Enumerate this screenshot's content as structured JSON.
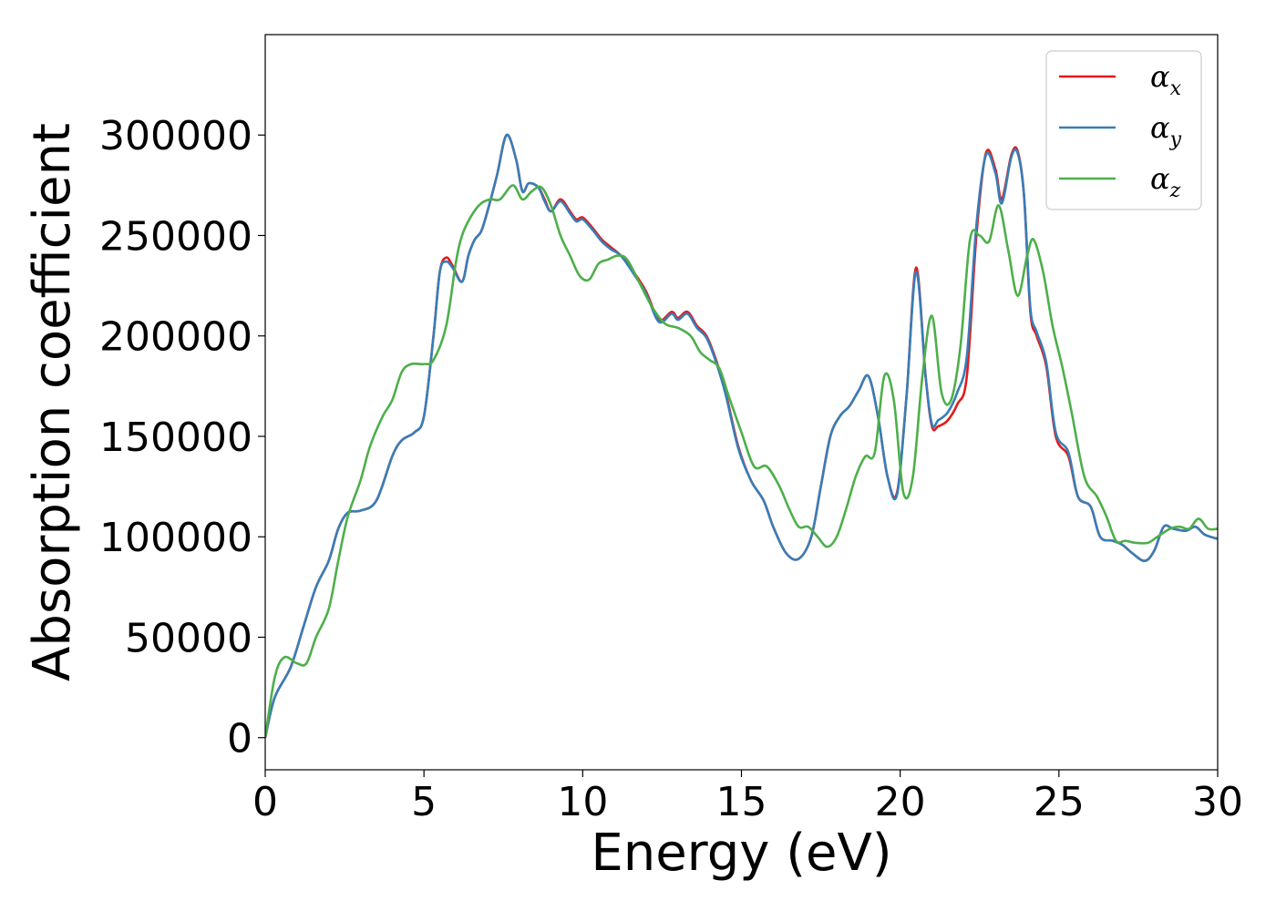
{
  "chart_data": {
    "type": "line",
    "xlabel": "Energy (eV)",
    "ylabel": "Absorption coefficient",
    "xlim": [
      0,
      30
    ],
    "ylim": [
      -16000,
      350000
    ],
    "xticks": [
      0,
      5,
      10,
      15,
      20,
      25,
      30
    ],
    "xtick_labels": [
      "0",
      "5",
      "10",
      "15",
      "20",
      "25",
      "30"
    ],
    "yticks": [
      0,
      50000,
      100000,
      150000,
      200000,
      250000,
      300000
    ],
    "ytick_labels": [
      "0",
      "50000",
      "100000",
      "150000",
      "200000",
      "250000",
      "300000"
    ],
    "grid": false,
    "legend_position": "top-right",
    "series": [
      {
        "name": "α",
        "subscript": "x",
        "color": "#e41a1c",
        "x": [
          0,
          0.3,
          0.8,
          1.2,
          1.6,
          2.0,
          2.3,
          2.6,
          3.0,
          3.5,
          4.0,
          4.3,
          4.7,
          5.0,
          5.3,
          5.5,
          5.7,
          5.9,
          6.2,
          6.4,
          6.6,
          6.8,
          7.0,
          7.3,
          7.6,
          7.9,
          8.1,
          8.3,
          8.6,
          8.8,
          9.0,
          9.3,
          9.6,
          9.8,
          10.0,
          10.3,
          10.6,
          10.9,
          11.2,
          11.6,
          12.0,
          12.4,
          12.8,
          13.0,
          13.3,
          13.6,
          13.9,
          14.2,
          14.5,
          14.9,
          15.3,
          15.7,
          16.0,
          16.4,
          16.8,
          17.2,
          17.5,
          17.8,
          18.1,
          18.4,
          18.7,
          19.0,
          19.3,
          19.6,
          19.9,
          20.2,
          20.5,
          20.8,
          21.0,
          21.2,
          21.5,
          21.8,
          22.1,
          22.4,
          22.7,
          23.0,
          23.2,
          23.5,
          23.7,
          23.9,
          24.1,
          24.3,
          24.6,
          24.9,
          25.3,
          25.6,
          26.0,
          26.3,
          26.7,
          27.0,
          27.3,
          27.7,
          28.0,
          28.3,
          28.6,
          29.0,
          29.3,
          29.6,
          30.0
        ],
        "y": [
          0,
          20000,
          35000,
          55000,
          75000,
          88000,
          104000,
          112000,
          113000,
          118000,
          140000,
          148000,
          152000,
          160000,
          200000,
          232000,
          239000,
          235000,
          227000,
          240000,
          248000,
          252000,
          262000,
          280000,
          300000,
          288000,
          272000,
          276000,
          274000,
          268000,
          262000,
          268000,
          262000,
          258000,
          259000,
          254000,
          248000,
          244000,
          240000,
          232000,
          222000,
          208000,
          212000,
          209000,
          212000,
          205000,
          200000,
          188000,
          172000,
          145000,
          128000,
          118000,
          105000,
          92000,
          89000,
          100000,
          125000,
          150000,
          160000,
          165000,
          173000,
          180000,
          160000,
          130000,
          122000,
          170000,
          234000,
          180000,
          155000,
          155000,
          158000,
          166000,
          180000,
          250000,
          291000,
          283000,
          268000,
          290000,
          292000,
          270000,
          212000,
          200000,
          185000,
          150000,
          140000,
          120000,
          115000,
          100000,
          98000,
          96000,
          92000,
          88000,
          93000,
          105000,
          104000,
          103000,
          105000,
          101000,
          99000
        ]
      },
      {
        "name": "α",
        "subscript": "y",
        "color": "#377eb8",
        "x": [
          0,
          0.3,
          0.8,
          1.2,
          1.6,
          2.0,
          2.3,
          2.6,
          3.0,
          3.5,
          4.0,
          4.3,
          4.7,
          5.0,
          5.3,
          5.5,
          5.7,
          5.9,
          6.2,
          6.4,
          6.6,
          6.8,
          7.0,
          7.3,
          7.6,
          7.9,
          8.1,
          8.3,
          8.6,
          8.8,
          9.0,
          9.3,
          9.6,
          9.8,
          10.0,
          10.3,
          10.6,
          10.9,
          11.2,
          11.6,
          12.0,
          12.4,
          12.8,
          13.0,
          13.3,
          13.6,
          13.9,
          14.2,
          14.5,
          14.9,
          15.3,
          15.7,
          16.0,
          16.4,
          16.8,
          17.2,
          17.5,
          17.8,
          18.1,
          18.4,
          18.7,
          19.0,
          19.3,
          19.6,
          19.9,
          20.2,
          20.5,
          20.8,
          21.0,
          21.2,
          21.5,
          21.8,
          22.1,
          22.4,
          22.7,
          23.0,
          23.2,
          23.5,
          23.7,
          23.9,
          24.1,
          24.3,
          24.6,
          24.9,
          25.3,
          25.6,
          26.0,
          26.3,
          26.7,
          27.0,
          27.3,
          27.7,
          28.0,
          28.3,
          28.6,
          29.0,
          29.3,
          29.6,
          30.0
        ],
        "y": [
          0,
          20000,
          35000,
          55000,
          75000,
          88000,
          104000,
          112000,
          113000,
          118000,
          140000,
          148000,
          152000,
          160000,
          200000,
          232000,
          237000,
          234000,
          227000,
          240000,
          248000,
          252000,
          262000,
          280000,
          300000,
          288000,
          272000,
          276000,
          274000,
          267000,
          262000,
          267000,
          261000,
          257000,
          258000,
          253000,
          247000,
          243000,
          240000,
          231000,
          221000,
          207000,
          211000,
          208000,
          211000,
          204000,
          199000,
          187000,
          171000,
          144000,
          128000,
          118000,
          105000,
          92000,
          89000,
          100000,
          125000,
          150000,
          160000,
          165000,
          173000,
          180000,
          160000,
          130000,
          121000,
          170000,
          232000,
          180000,
          156000,
          158000,
          162000,
          172000,
          190000,
          255000,
          290000,
          281000,
          266000,
          289000,
          291000,
          270000,
          214000,
          202000,
          187000,
          152000,
          142000,
          120000,
          115000,
          100000,
          98000,
          96000,
          92000,
          88000,
          93000,
          105000,
          104000,
          103000,
          105000,
          101000,
          99000
        ]
      },
      {
        "name": "α",
        "subscript": "z",
        "color": "#4daf4a",
        "x": [
          0,
          0.3,
          0.6,
          1.0,
          1.3,
          1.6,
          2.0,
          2.3,
          2.6,
          3.0,
          3.3,
          3.7,
          4.0,
          4.3,
          4.6,
          5.0,
          5.3,
          5.7,
          6.0,
          6.2,
          6.5,
          6.8,
          7.1,
          7.4,
          7.8,
          8.1,
          8.4,
          8.7,
          9.0,
          9.3,
          9.6,
          9.9,
          10.2,
          10.5,
          10.8,
          11.1,
          11.4,
          11.8,
          12.2,
          12.6,
          13.0,
          13.4,
          13.7,
          14.0,
          14.3,
          14.6,
          15.0,
          15.4,
          15.8,
          16.2,
          16.5,
          16.8,
          17.1,
          17.4,
          17.7,
          18.0,
          18.3,
          18.6,
          18.9,
          19.2,
          19.5,
          19.8,
          20.1,
          20.4,
          20.7,
          21.0,
          21.3,
          21.6,
          21.9,
          22.2,
          22.5,
          22.8,
          23.1,
          23.4,
          23.7,
          24.0,
          24.2,
          24.5,
          24.8,
          25.1,
          25.4,
          25.8,
          26.2,
          26.5,
          26.8,
          27.1,
          27.4,
          27.8,
          28.1,
          28.5,
          28.8,
          29.1,
          29.4,
          29.7,
          30.0
        ],
        "y": [
          0,
          30000,
          40000,
          37000,
          37000,
          50000,
          64000,
          88000,
          110000,
          128000,
          145000,
          160000,
          168000,
          182000,
          186000,
          186000,
          188000,
          205000,
          236000,
          250000,
          260000,
          266000,
          268000,
          268000,
          275000,
          268000,
          272000,
          274000,
          265000,
          250000,
          240000,
          230000,
          228000,
          236000,
          238000,
          240000,
          238000,
          226000,
          214000,
          206000,
          204000,
          200000,
          192000,
          188000,
          184000,
          170000,
          152000,
          135000,
          135000,
          125000,
          114000,
          105000,
          105000,
          100000,
          95000,
          100000,
          114000,
          130000,
          140000,
          142000,
          180000,
          168000,
          122000,
          130000,
          180000,
          210000,
          172000,
          168000,
          195000,
          248000,
          250000,
          247000,
          265000,
          243000,
          220000,
          240000,
          248000,
          232000,
          205000,
          185000,
          162000,
          130000,
          120000,
          110000,
          98000,
          98000,
          97000,
          97000,
          100000,
          104000,
          105000,
          104000,
          109000,
          104000,
          104000
        ]
      }
    ]
  }
}
